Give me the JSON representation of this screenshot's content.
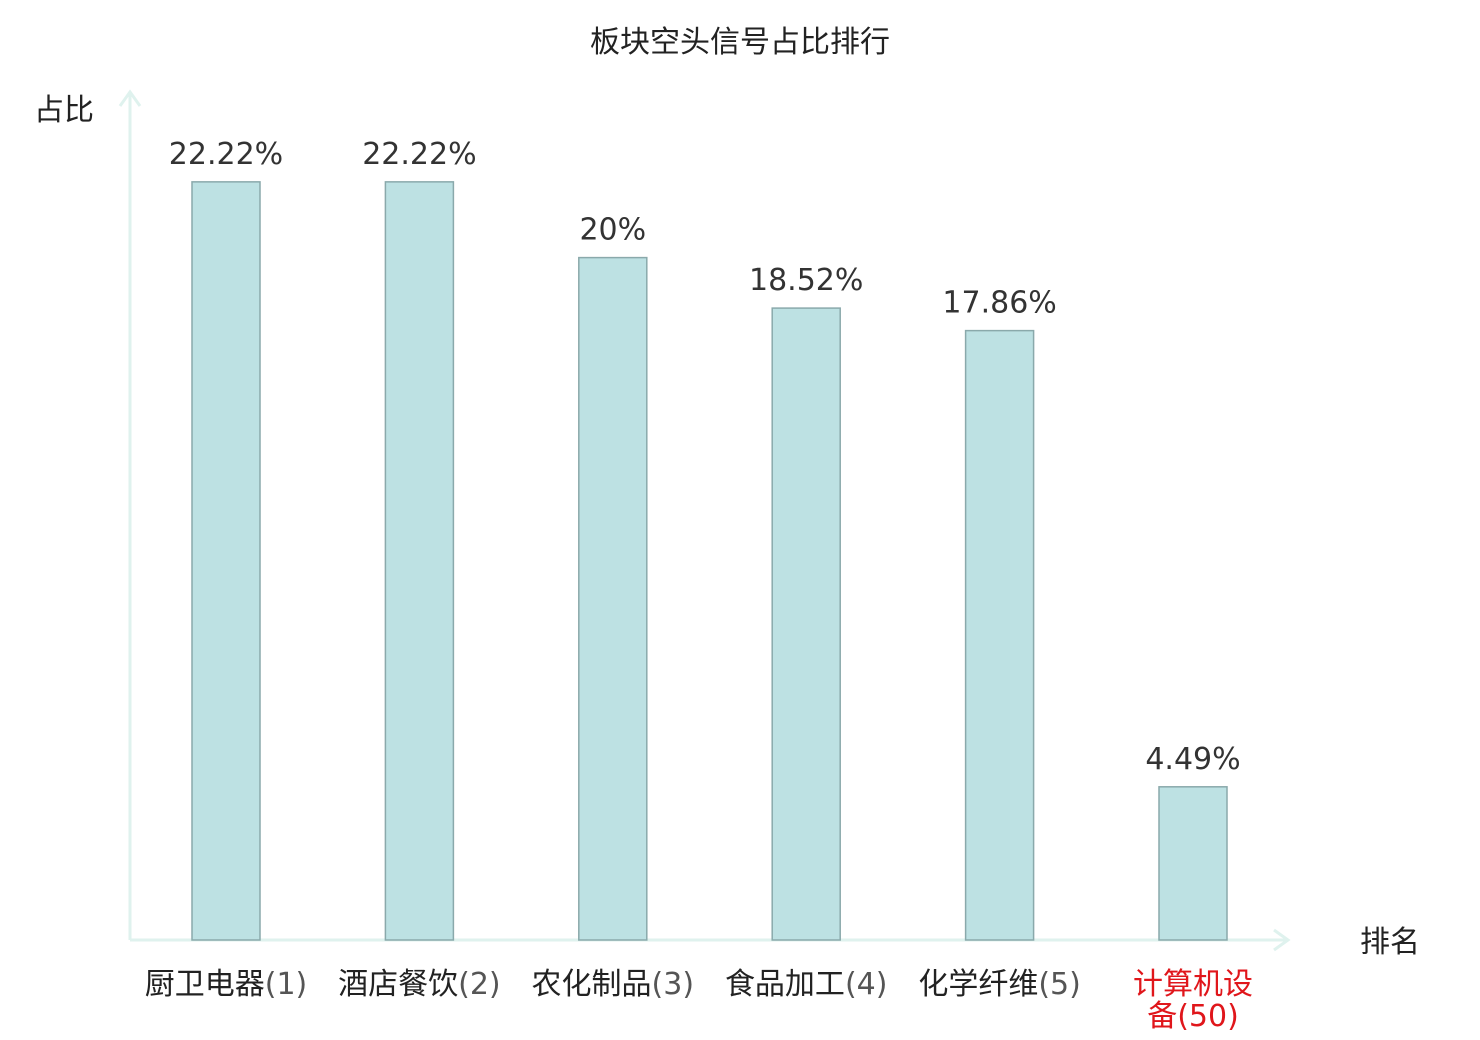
{
  "chart_data": {
    "type": "bar",
    "title": "板块空头信号占比排行",
    "ylabel": "占比",
    "xlabel": "排名",
    "categories": [
      {
        "name": "厨卫电器",
        "rank": "(1)",
        "highlight": false
      },
      {
        "name": "酒店餐饮",
        "rank": "(2)",
        "highlight": false
      },
      {
        "name": "农化制品",
        "rank": "(3)",
        "highlight": false
      },
      {
        "name": "食品加工",
        "rank": "(4)",
        "highlight": false
      },
      {
        "name": "化学纤维",
        "rank": "(5)",
        "highlight": false
      },
      {
        "name": "计算机设备",
        "rank": "(50)",
        "highlight": true
      }
    ],
    "values": [
      22.22,
      22.22,
      20,
      18.52,
      17.86,
      4.49
    ],
    "value_labels": [
      "22.22%",
      "22.22%",
      "20%",
      "18.52%",
      "17.86%",
      "4.49%"
    ],
    "grid": false,
    "legend": "none",
    "colors": {
      "bar_fill": "#bde1e3",
      "bar_stroke": "#8aa9ab",
      "axis": "#dff2ee",
      "highlight_text": "#e0161b",
      "text": "#222222",
      "rank_text": "#555555"
    }
  }
}
